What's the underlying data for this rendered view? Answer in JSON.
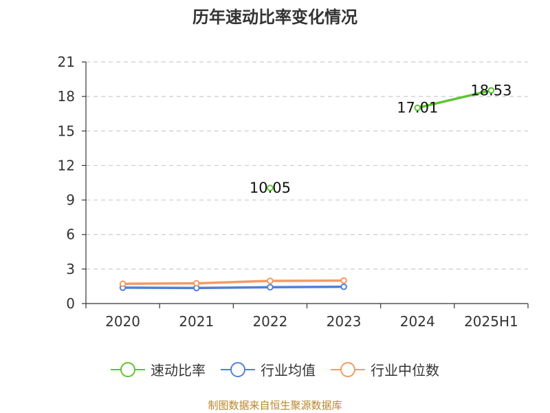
{
  "chart_data": {
    "type": "line",
    "title": "历年速动比率变化情况",
    "categories": [
      "2020",
      "2021",
      "2022",
      "2023",
      "2024",
      "2025H1"
    ],
    "ylim": [
      0,
      21
    ],
    "yticks": [
      0,
      3,
      6,
      9,
      12,
      15,
      18,
      21
    ],
    "grid": true,
    "legend_position": "bottom",
    "series": [
      {
        "name": "速动比率",
        "color": "#5cc531",
        "values": [
          null,
          null,
          10.05,
          null,
          17.01,
          18.53
        ],
        "data_labels": [
          "",
          "",
          "10.05",
          "",
          "17.01",
          "18.53"
        ]
      },
      {
        "name": "行业均值",
        "color": "#4f7fd8",
        "values": [
          1.38,
          1.35,
          1.42,
          1.46,
          null,
          null
        ]
      },
      {
        "name": "行业中位数",
        "color": "#f59a64",
        "values": [
          1.72,
          1.76,
          1.97,
          2.0,
          null,
          null
        ]
      }
    ]
  },
  "footer": "制图数据来自恒生聚源数据库"
}
